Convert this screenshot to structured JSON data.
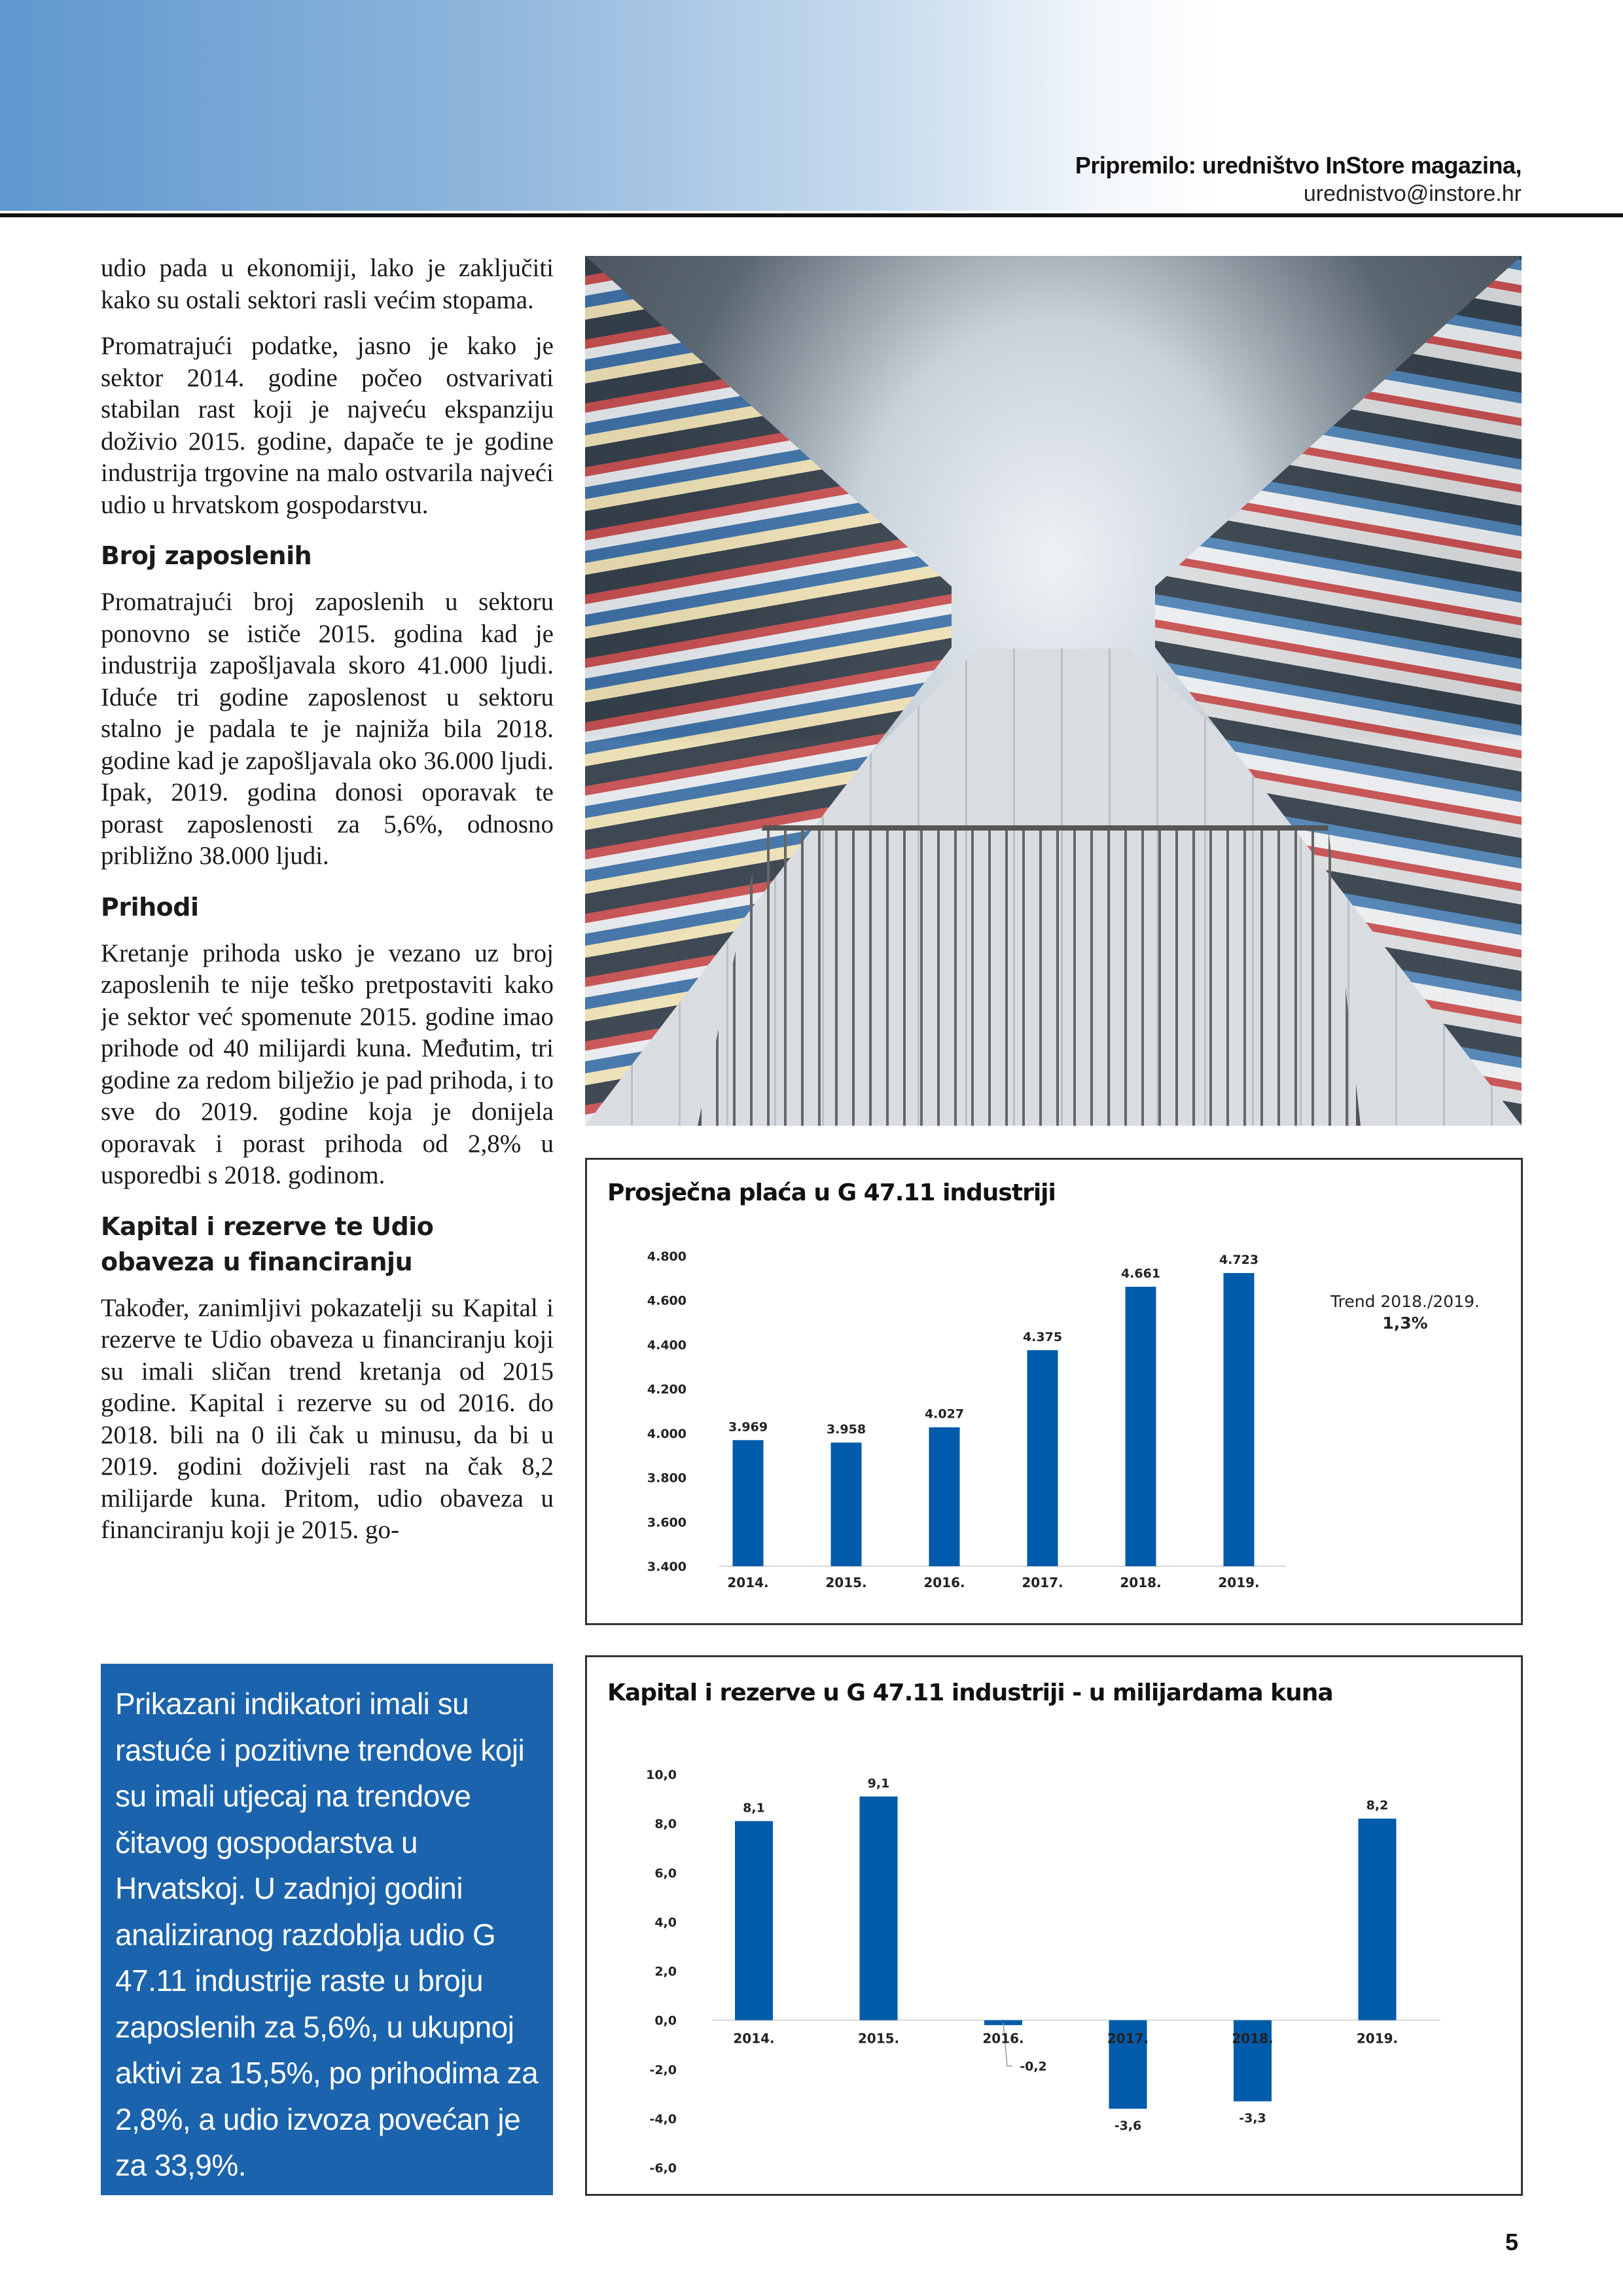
{
  "header": {
    "credit": "Pripremilo: uredništvo InStore magazina,",
    "email": "urednistvo@instore.hr"
  },
  "article": {
    "p1": "udio pada u ekonomiji, lako je zaključiti kako su ostali sektori rasli većim stopama.",
    "p2": "Promatrajući podatke, jasno je kako je sektor 2014. godine počeo ostvarivati stabilan rast koji je najveću ekspanziju doživio 2015. godine, dapače te je godine industrija trgovine na malo ostvarila najveći udio u hrvatskom gospodarstvu.",
    "h_employees": "Broj zaposlenih",
    "p3": "Promatrajući broj zaposlenih u sektoru ponovno se ističe 2015. godina kad je industrija zapošljavala skoro 41.000 ljudi. Iduće tri godine zaposlenost u sektoru stalno je padala te je najniža bila 2018. godine kad je zapošljavala oko 36.000 ljudi. Ipak, 2019. godina donosi oporavak te porast zaposlenosti za 5,6%, odnosno približno 38.000 ljudi.",
    "h_revenue": "Prihodi",
    "p4": "Kretanje prihoda usko je vezano uz broj zaposlenih te nije teško pretpostaviti kako je sektor već spomenute 2015. godine imao prihode od 40 milijardi kuna. Međutim, tri godine za redom bilježio je pad prihoda, i to sve do 2019. godine koja je donijela oporavak i porast prihoda od 2,8% u usporedbi s 2018. godinom.",
    "h_capital": "Kapital i rezerve te Udio obaveza u financiranju",
    "p5": "Također, zanimljivi pokazatelji su Kapital i rezerve te Udio obaveza u financiranju koji su imali sličan trend kretanja od 2015 godine. Kapital i rezerve su od 2016. do 2018. bili na 0 ili čak u minusu, da bi u 2019. godini doživjeli rast na čak 8,2 milijarde kuna. Pritom, udio obaveza u financiranju koji je 2015. go-"
  },
  "callout": {
    "text": "Prikazani indikatori imali su rastuće i pozitivne trendove koji su imali utjecaj na trendove čitavog gospodarstva u Hrvatskoj. U zadnjoj godini analiziranog razdoblja udio G 47.11 industrije raste u broju zaposlenih za 5,6%, u ukupnoj aktivi za 15,5%, po prihodima za 2,8%, a udio izvoza povećan je za 33,9%."
  },
  "photo": {
    "icon": "supermarket-aisle-photo"
  },
  "page_number": "5",
  "colors": {
    "bar": "#005BAA",
    "callout": "#1B63AD",
    "header_gradient_start": "#5F98CF"
  },
  "chart_data": [
    {
      "type": "bar",
      "title": "Prosječna plaća u G 47.11 industriji",
      "categories": [
        "2014.",
        "2015.",
        "2016.",
        "2017.",
        "2018.",
        "2019."
      ],
      "values": [
        3969,
        3958,
        4027,
        4375,
        4661,
        4723
      ],
      "value_labels": [
        "3.969",
        "3.958",
        "4.027",
        "4.375",
        "4.661",
        "4.723"
      ],
      "ylim": [
        3400,
        4800
      ],
      "yticks": [
        "3.400",
        "3.600",
        "3.800",
        "4.000",
        "4.200",
        "4.400",
        "4.600",
        "4.800"
      ],
      "ytick_values": [
        3400,
        3600,
        3800,
        4000,
        4200,
        4400,
        4600,
        4800
      ],
      "annotation": {
        "label": "Trend 2018./2019.",
        "value": "1,3%"
      },
      "grid": false,
      "xlabel": "",
      "ylabel": ""
    },
    {
      "type": "bar",
      "title": "Kapital i rezerve u G 47.11 industriji - u milijardama kuna",
      "categories": [
        "2014.",
        "2015.",
        "2016.",
        "2017.",
        "2018.",
        "2019."
      ],
      "values": [
        8.1,
        9.1,
        -0.2,
        -3.6,
        -3.3,
        8.2
      ],
      "value_labels": [
        "8,1",
        "9,1",
        "-0,2",
        "-3,6",
        "-3,3",
        "8,2"
      ],
      "ylim": [
        -6,
        10
      ],
      "yticks": [
        "-6,0",
        "-4,0",
        "-2,0",
        "0,0",
        "2,0",
        "4,0",
        "6,0",
        "8,0",
        "10,0"
      ],
      "ytick_values": [
        -6,
        -4,
        -2,
        0,
        2,
        4,
        6,
        8,
        10
      ],
      "grid": false,
      "xlabel": "",
      "ylabel": ""
    }
  ]
}
